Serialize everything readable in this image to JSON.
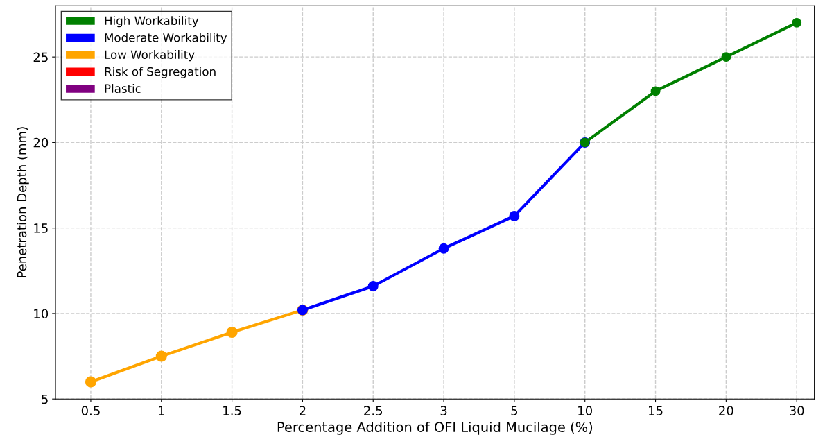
{
  "chart_data": {
    "type": "line",
    "xlabel": "Percentage Addition of OFI Liquid Mucilage (%)",
    "ylabel": "Penetration Depth (mm)",
    "categories": [
      "0.5",
      "1",
      "1.5",
      "2",
      "2.5",
      "3",
      "5",
      "10",
      "15",
      "20",
      "30"
    ],
    "series": [
      {
        "name": "High Workability",
        "color": "#008000",
        "values": [
          null,
          null,
          null,
          null,
          null,
          null,
          null,
          20,
          23,
          25,
          27
        ]
      },
      {
        "name": "Moderate Workability",
        "color": "#0000ff",
        "values": [
          null,
          null,
          null,
          10.2,
          11.6,
          13.8,
          15.7,
          20,
          null,
          null,
          null
        ]
      },
      {
        "name": "Low Workability",
        "color": "#ffa500",
        "values": [
          6,
          7.5,
          8.9,
          10.2,
          null,
          null,
          null,
          null,
          null,
          null,
          null
        ]
      },
      {
        "name": "Risk of Segregation",
        "color": "#ff0000",
        "values": [
          null,
          null,
          null,
          null,
          null,
          null,
          null,
          null,
          null,
          null,
          null
        ]
      },
      {
        "name": "Plastic",
        "color": "#800080",
        "values": [
          null,
          null,
          null,
          null,
          null,
          null,
          null,
          null,
          null,
          null,
          null
        ]
      }
    ],
    "ylim": [
      5,
      28
    ],
    "yticks": [
      5,
      10,
      15,
      20,
      25
    ],
    "grid": true,
    "legend": "top left",
    "marker": "circle",
    "line_style": "solid"
  }
}
